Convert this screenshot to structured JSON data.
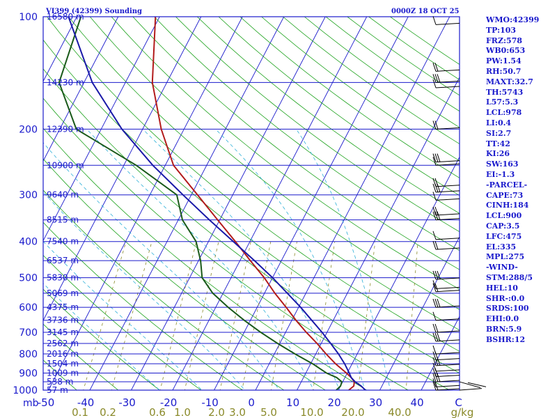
{
  "header": {
    "title": "VI399 (42399) Sounding",
    "datetime": "0000Z 18 OCT 25"
  },
  "chart_data": {
    "type": "skew-t log-p sounding",
    "pressure_labels": [
      "100",
      "200",
      "300",
      "400",
      "500",
      "600",
      "700",
      "800",
      "900",
      "1000"
    ],
    "height_labels": [
      {
        "p": 100,
        "h": "16580 m"
      },
      {
        "p": 150,
        "h": "14230 m"
      },
      {
        "p": 200,
        "h": "12390 m"
      },
      {
        "p": 250,
        "h": "10900 m"
      },
      {
        "p": 300,
        "h": "9640 m"
      },
      {
        "p": 350,
        "h": "8515 m"
      },
      {
        "p": 400,
        "h": "7540 m"
      },
      {
        "p": 450,
        "h": "6537 m"
      },
      {
        "p": 500,
        "h": "5830 m"
      },
      {
        "p": 550,
        "h": "5069 m"
      },
      {
        "p": 600,
        "h": "4375 m"
      },
      {
        "p": 650,
        "h": "3736 m"
      },
      {
        "p": 700,
        "h": "3145 m"
      },
      {
        "p": 750,
        "h": "2562 m"
      },
      {
        "p": 800,
        "h": "2016 m"
      },
      {
        "p": 850,
        "h": "1504 m"
      },
      {
        "p": 900,
        "h": "1009 m"
      },
      {
        "p": 950,
        "h": "538 m"
      },
      {
        "p": 1000,
        "h": "57 m"
      }
    ],
    "x_unit_label": "mb",
    "temperature_ticks": [
      "-50",
      "-40",
      "-30",
      "-20",
      "-10",
      "0",
      "10",
      "20",
      "30",
      "40",
      "C"
    ],
    "mixing_ratio_ticks": [
      "0.1",
      "0.2",
      "0.6",
      "1.0",
      "2.0",
      "3.0",
      "5.0",
      "10.0",
      "20.0",
      "40.0",
      "g/kg"
    ],
    "temperature_profile": [
      [
        1000,
        22.5
      ],
      [
        975,
        23.2
      ],
      [
        950,
        22.8
      ],
      [
        925,
        21.5
      ],
      [
        900,
        19.8
      ],
      [
        850,
        16.0
      ],
      [
        800,
        12.5
      ],
      [
        750,
        9.0
      ],
      [
        700,
        5.0
      ],
      [
        650,
        1.0
      ],
      [
        600,
        -3.0
      ],
      [
        550,
        -7.5
      ],
      [
        500,
        -12.0
      ],
      [
        450,
        -17.5
      ],
      [
        400,
        -23.5
      ],
      [
        350,
        -30.5
      ],
      [
        300,
        -38.5
      ],
      [
        250,
        -48.0
      ],
      [
        200,
        -55.5
      ],
      [
        150,
        -63.5
      ],
      [
        100,
        -71.0
      ]
    ],
    "dewpoint_profile": [
      [
        1000,
        19.5
      ],
      [
        975,
        20.0
      ],
      [
        950,
        19.8
      ],
      [
        925,
        18.0
      ],
      [
        900,
        15.0
      ],
      [
        850,
        10.5
      ],
      [
        800,
        5.0
      ],
      [
        750,
        -0.5
      ],
      [
        700,
        -6.0
      ],
      [
        650,
        -11.5
      ],
      [
        600,
        -17.0
      ],
      [
        550,
        -22.5
      ],
      [
        500,
        -27.0
      ],
      [
        450,
        -29.5
      ],
      [
        400,
        -33.0
      ],
      [
        350,
        -39.0
      ],
      [
        300,
        -43.5
      ],
      [
        250,
        -57.0
      ],
      [
        200,
        -76.0
      ],
      [
        150,
        -86.0
      ],
      [
        100,
        -89.0
      ]
    ],
    "parcel_profile": [
      [
        1000,
        26.5
      ],
      [
        975,
        25.0
      ],
      [
        950,
        23.0
      ],
      [
        925,
        21.5
      ],
      [
        900,
        20.5
      ],
      [
        850,
        18.2
      ],
      [
        800,
        15.5
      ],
      [
        750,
        12.3
      ],
      [
        700,
        8.8
      ],
      [
        650,
        4.8
      ],
      [
        600,
        0.5
      ],
      [
        550,
        -4.5
      ],
      [
        500,
        -10.0
      ],
      [
        450,
        -16.5
      ],
      [
        400,
        -24.0
      ],
      [
        350,
        -32.5
      ],
      [
        300,
        -42.0
      ],
      [
        250,
        -53.0
      ],
      [
        200,
        -65.0
      ],
      [
        150,
        -78.0
      ],
      [
        100,
        -92.0
      ]
    ],
    "wind_levels_mb": [
      105,
      140,
      150,
      155,
      200,
      245,
      250,
      285,
      295,
      310,
      340,
      350,
      395,
      420,
      505,
      535,
      545,
      600,
      650,
      700,
      740,
      800,
      830,
      860,
      890,
      920,
      950,
      980,
      1000
    ],
    "colors": {
      "isobar": "#1a1acc",
      "isotherm": "#1a1acc",
      "dry_adiabat": "#1fa31f",
      "moist_adiabat": "#2fb0d8",
      "mixing_ratio": "#8a8a2a",
      "temperature": "#b21b1b",
      "dewpoint": "#1a5a1a",
      "parcel": "#1a1aa8",
      "wind": "#000000"
    }
  },
  "indices": [
    "WMO:42399",
    "TP:103",
    "FRZ:578",
    "WB0:653",
    "PW:1.54",
    "RH:50.7",
    "MAXT:32.7",
    "TH:5743",
    "L57:5.3",
    "LCL:978",
    "LI:0.4",
    "SI:2.7",
    "TT:42",
    "KI:26",
    "SW:163",
    "EI:-1.3",
    "-PARCEL-",
    "CAPE:73",
    "CINH:184",
    "LCL:900",
    "CAP:3.5",
    "LFC:475",
    "EL:335",
    "MPL:275",
    "-WIND-",
    "STM:288/5",
    "HEL:10",
    "SHR-:0.0",
    "SRDS:100",
    "EHI:0.0",
    "BRN:5.9",
    "BSHR:12"
  ]
}
